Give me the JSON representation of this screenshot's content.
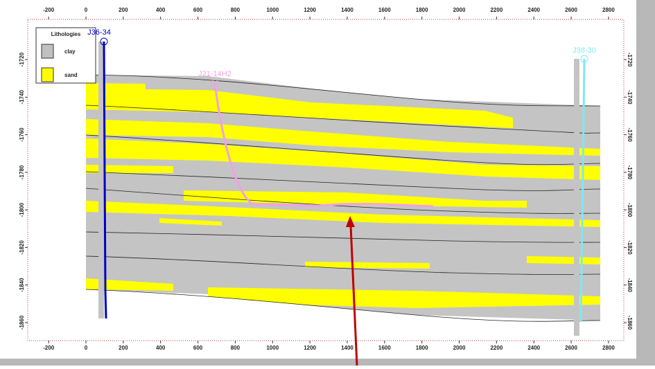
{
  "chart_data": {
    "type": "cross-section",
    "xlim": [
      -312,
      2882
    ],
    "ylim": [
      -1869.6,
      -1698.6
    ],
    "xticks": [
      -200,
      0,
      200,
      400,
      600,
      800,
      1000,
      1200,
      1400,
      1600,
      1800,
      2000,
      2200,
      2400,
      2600,
      2800
    ],
    "yticks": [
      -1720,
      -1740,
      -1760,
      -1780,
      -1800,
      -1820,
      -1840,
      -1860
    ],
    "legend": {
      "title": "Lithologies",
      "items": [
        {
          "name": "clay",
          "color": "#c0c0c0"
        },
        {
          "name": "sand",
          "color": "#ffff00"
        }
      ]
    },
    "wells": [
      {
        "name": "J36-34",
        "color": "#0000c8"
      },
      {
        "name": "J21-14H2",
        "color": "#f0a0e8"
      },
      {
        "name": "J38-30",
        "color": "#80e8f0"
      }
    ]
  }
}
